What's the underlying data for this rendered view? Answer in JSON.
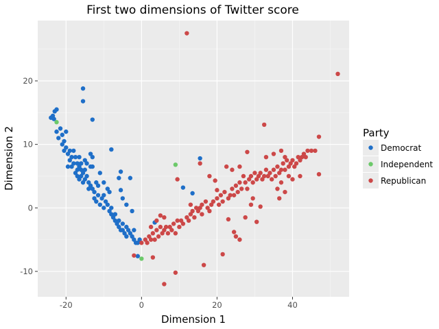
{
  "chart_data": {
    "type": "scatter",
    "title": "First two dimensions of Twitter score",
    "xlabel": "Dimension 1",
    "ylabel": "Dimension 2",
    "xlim": [
      -27.5,
      55
    ],
    "ylim": [
      -14,
      29.5
    ],
    "xticks": [
      -20,
      0,
      20,
      40
    ],
    "yticks": [
      -10,
      0,
      10,
      20
    ],
    "grid": true,
    "legend": {
      "title": "Party",
      "placement": "right"
    },
    "series": [
      {
        "name": "Democrat",
        "color": "#1f6fc8",
        "points": [
          [
            -24,
            14.2
          ],
          [
            -23.5,
            14.5
          ],
          [
            -23,
            15.2
          ],
          [
            -22.5,
            15.5
          ],
          [
            -23.2,
            14
          ],
          [
            -22.5,
            12
          ],
          [
            -22,
            11
          ],
          [
            -21.5,
            12.5
          ],
          [
            -21,
            11.5
          ],
          [
            -20.5,
            10.5
          ],
          [
            -21,
            10
          ],
          [
            -20,
            12
          ],
          [
            -20,
            9.5
          ],
          [
            -20.5,
            9
          ],
          [
            -19.5,
            8.5
          ],
          [
            -19,
            7.5
          ],
          [
            -19,
            9
          ],
          [
            -18.5,
            8
          ],
          [
            -18,
            7
          ],
          [
            -18.5,
            6.5
          ],
          [
            -19.5,
            6.5
          ],
          [
            -18,
            9
          ],
          [
            -17.5,
            8
          ],
          [
            -17,
            7
          ],
          [
            -17,
            6
          ],
          [
            -17.5,
            5.5
          ],
          [
            -17,
            5
          ],
          [
            -16.5,
            6.5
          ],
          [
            -16.5,
            4.5
          ],
          [
            -16,
            6
          ],
          [
            -16,
            5
          ],
          [
            -16,
            7
          ],
          [
            -16.5,
            8
          ],
          [
            -15.5,
            5.5
          ],
          [
            -15.5,
            4
          ],
          [
            -15,
            4.5
          ],
          [
            -15,
            6
          ],
          [
            -15,
            7.5
          ],
          [
            -14.5,
            5
          ],
          [
            -14,
            4
          ],
          [
            -14.5,
            7
          ],
          [
            -13.5,
            6.5
          ],
          [
            -13,
            8
          ],
          [
            -13,
            6.5
          ],
          [
            -13.5,
            8.5
          ],
          [
            -14,
            3
          ],
          [
            -13.5,
            3.5
          ],
          [
            -13,
            3
          ],
          [
            -12.5,
            2.5
          ],
          [
            -12.5,
            1.5
          ],
          [
            -12,
            4
          ],
          [
            -12,
            1
          ],
          [
            -11.5,
            2
          ],
          [
            -11.5,
            3.5
          ],
          [
            -11,
            5.5
          ],
          [
            -11,
            0.5
          ],
          [
            -10.5,
            1.5
          ],
          [
            -10,
            0
          ],
          [
            -10,
            2
          ],
          [
            -10,
            4
          ],
          [
            -9.5,
            1
          ],
          [
            -9,
            0.5
          ],
          [
            -9,
            3
          ],
          [
            -8.5,
            -0.5
          ],
          [
            -8,
            0
          ],
          [
            -8.5,
            2.5
          ],
          [
            -8,
            -1
          ],
          [
            -7.5,
            -1.5
          ],
          [
            -7,
            -1
          ],
          [
            -7,
            -2
          ],
          [
            -6.5,
            -2.5
          ],
          [
            -6,
            -2
          ],
          [
            -6,
            -3
          ],
          [
            -5.5,
            -3.5
          ],
          [
            -5,
            -2.5
          ],
          [
            -5,
            -3.5
          ],
          [
            -4.5,
            -4
          ],
          [
            -4,
            -3
          ],
          [
            -4,
            -4.5
          ],
          [
            -3.5,
            -3.5
          ],
          [
            -3,
            -4
          ],
          [
            -2.5,
            -4.5
          ],
          [
            -2,
            -5
          ],
          [
            -2,
            -3.5
          ],
          [
            -1.5,
            -5.5
          ],
          [
            -1,
            -5.5
          ],
          [
            -0.5,
            -5
          ],
          [
            -15.5,
            18.8
          ],
          [
            -15.5,
            16.8
          ],
          [
            -13,
            13.9
          ],
          [
            -8,
            9.2
          ],
          [
            -5.5,
            5.7
          ],
          [
            -6,
            4.7
          ],
          [
            -3,
            4.7
          ],
          [
            -5.5,
            2.8
          ],
          [
            -5,
            1.5
          ],
          [
            -4,
            0.5
          ],
          [
            -2.5,
            -0.5
          ],
          [
            -1,
            -7.6
          ],
          [
            3.5,
            -2.3
          ],
          [
            11,
            3.2
          ],
          [
            13.5,
            2.3
          ],
          [
            15.5,
            7.8
          ]
        ]
      },
      {
        "name": "Independent",
        "color": "#6cc96a",
        "points": [
          [
            -22.5,
            13.5
          ],
          [
            9,
            6.8
          ],
          [
            0,
            -8
          ]
        ]
      },
      {
        "name": "Republican",
        "color": "#cc4848",
        "points": [
          [
            12,
            27.5
          ],
          [
            52,
            21.1
          ],
          [
            47,
            11.2
          ],
          [
            47,
            5.3
          ],
          [
            32.5,
            13.1
          ],
          [
            28,
            8.8
          ],
          [
            22.5,
            6.5
          ],
          [
            19.5,
            4.3
          ],
          [
            0,
            -5.5
          ],
          [
            1,
            -5
          ],
          [
            1.5,
            -5.5
          ],
          [
            2,
            -4.5
          ],
          [
            2.5,
            -5
          ],
          [
            3,
            -4
          ],
          [
            3.5,
            -5
          ],
          [
            4,
            -3.5
          ],
          [
            4.5,
            -4.5
          ],
          [
            5,
            -3
          ],
          [
            5.5,
            -4
          ],
          [
            6,
            -3.5
          ],
          [
            6.5,
            -3
          ],
          [
            7,
            -4
          ],
          [
            7.5,
            -3
          ],
          [
            8,
            -3.5
          ],
          [
            8.5,
            -2.5
          ],
          [
            9,
            -4
          ],
          [
            9.5,
            -2
          ],
          [
            10,
            -3
          ],
          [
            10.5,
            -2
          ],
          [
            11,
            -2.5
          ],
          [
            12,
            -1.5
          ],
          [
            12.5,
            -2
          ],
          [
            13,
            -1
          ],
          [
            13.5,
            -0.5
          ],
          [
            14,
            -1.5
          ],
          [
            14.5,
            0
          ],
          [
            15,
            -0.5
          ],
          [
            15.5,
            0
          ],
          [
            16,
            -1
          ],
          [
            16,
            0.5
          ],
          [
            17,
            1
          ],
          [
            17.5,
            0
          ],
          [
            18,
            -0.5
          ],
          [
            18.5,
            0.5
          ],
          [
            19,
            1
          ],
          [
            20,
            1.5
          ],
          [
            20.5,
            0.5
          ],
          [
            21,
            2
          ],
          [
            21.5,
            1
          ],
          [
            22,
            2.5
          ],
          [
            23,
            1.5
          ],
          [
            23.5,
            2
          ],
          [
            24,
            3
          ],
          [
            24.5,
            2
          ],
          [
            25,
            3.5
          ],
          [
            25.5,
            2.5
          ],
          [
            26,
            4
          ],
          [
            26.5,
            3
          ],
          [
            27,
            5
          ],
          [
            27.5,
            4
          ],
          [
            28,
            3
          ],
          [
            28.5,
            4.5
          ],
          [
            29,
            5
          ],
          [
            29.5,
            4
          ],
          [
            30,
            5.5
          ],
          [
            30.5,
            4.5
          ],
          [
            31,
            5
          ],
          [
            31.5,
            5.5
          ],
          [
            32,
            4.5
          ],
          [
            32.5,
            5
          ],
          [
            33,
            6
          ],
          [
            33.5,
            5
          ],
          [
            34,
            5.5
          ],
          [
            34.5,
            4.5
          ],
          [
            35,
            6
          ],
          [
            35.5,
            5
          ],
          [
            36,
            6.5
          ],
          [
            36.5,
            5.5
          ],
          [
            37,
            6
          ],
          [
            37.5,
            7
          ],
          [
            38,
            6
          ],
          [
            38.5,
            7.5
          ],
          [
            39,
            6.5
          ],
          [
            39.5,
            7
          ],
          [
            40,
            7.5
          ],
          [
            40.5,
            6.5
          ],
          [
            41,
            7
          ],
          [
            41.5,
            8
          ],
          [
            42,
            7.5
          ],
          [
            42.5,
            8
          ],
          [
            43,
            8.5
          ],
          [
            43.5,
            8
          ],
          [
            44,
            9
          ],
          [
            45,
            9
          ],
          [
            46,
            9
          ],
          [
            2.5,
            -3
          ],
          [
            4,
            -2
          ],
          [
            5,
            -1.2
          ],
          [
            6,
            -1.5
          ],
          [
            3,
            -7.8
          ],
          [
            -2,
            -7.5
          ],
          [
            6,
            -12
          ],
          [
            9,
            -10.2
          ],
          [
            16.5,
            -9
          ],
          [
            21.5,
            -7.3
          ],
          [
            24.5,
            -3.8
          ],
          [
            26,
            -5
          ],
          [
            27.5,
            -1.5
          ],
          [
            30.5,
            -2.2
          ],
          [
            29,
            0.5
          ],
          [
            31.5,
            0.2
          ],
          [
            36.5,
            1.5
          ],
          [
            38,
            2.5
          ],
          [
            13,
            0.5
          ],
          [
            15.5,
            7
          ],
          [
            9.5,
            4.5
          ],
          [
            24,
            6
          ],
          [
            20,
            2.8
          ],
          [
            26,
            6.5
          ],
          [
            29.5,
            1.5
          ],
          [
            33,
            8
          ],
          [
            35,
            8.5
          ],
          [
            38,
            8
          ],
          [
            37,
            9
          ],
          [
            36,
            3
          ],
          [
            37,
            4
          ],
          [
            40,
            4.5
          ],
          [
            42,
            5
          ],
          [
            39,
            5
          ],
          [
            18,
            5
          ],
          [
            23,
            -1.8
          ],
          [
            25,
            -4.5
          ]
        ]
      }
    ]
  }
}
